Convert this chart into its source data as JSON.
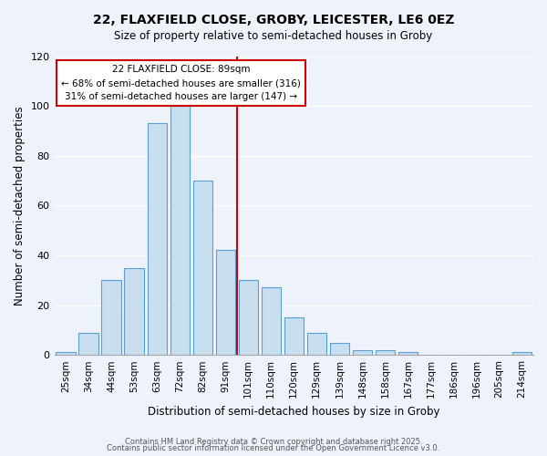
{
  "title": "22, FLAXFIELD CLOSE, GROBY, LEICESTER, LE6 0EZ",
  "subtitle": "Size of property relative to semi-detached houses in Groby",
  "xlabel": "Distribution of semi-detached houses by size in Groby",
  "ylabel": "Number of semi-detached properties",
  "bin_labels": [
    "25sqm",
    "34sqm",
    "44sqm",
    "53sqm",
    "63sqm",
    "72sqm",
    "82sqm",
    "91sqm",
    "101sqm",
    "110sqm",
    "120sqm",
    "129sqm",
    "139sqm",
    "148sqm",
    "158sqm",
    "167sqm",
    "177sqm",
    "186sqm",
    "196sqm",
    "205sqm",
    "214sqm"
  ],
  "bar_values": [
    1,
    9,
    30,
    35,
    93,
    100,
    70,
    42,
    30,
    27,
    15,
    9,
    5,
    2,
    2,
    1,
    0,
    0,
    0,
    0,
    1
  ],
  "bar_color": "#c8dff0",
  "bar_edge_color": "#5a9fd4",
  "vline_pos": 7.5,
  "vline_color": "#cc0000",
  "ylim": [
    0,
    120
  ],
  "yticks": [
    0,
    20,
    40,
    60,
    80,
    100,
    120
  ],
  "annotation_title": "22 FLAXFIELD CLOSE: 89sqm",
  "annotation_line1": "← 68% of semi-detached houses are smaller (316)",
  "annotation_line2": "31% of semi-detached houses are larger (147) →",
  "annotation_box_color": "#ffffff",
  "annotation_box_edge": "#cc0000",
  "footer1": "Contains HM Land Registry data © Crown copyright and database right 2025.",
  "footer2": "Contains public sector information licensed under the Open Government Licence v3.0.",
  "bg_color": "#eef2fb",
  "grid_color": "#ffffff"
}
